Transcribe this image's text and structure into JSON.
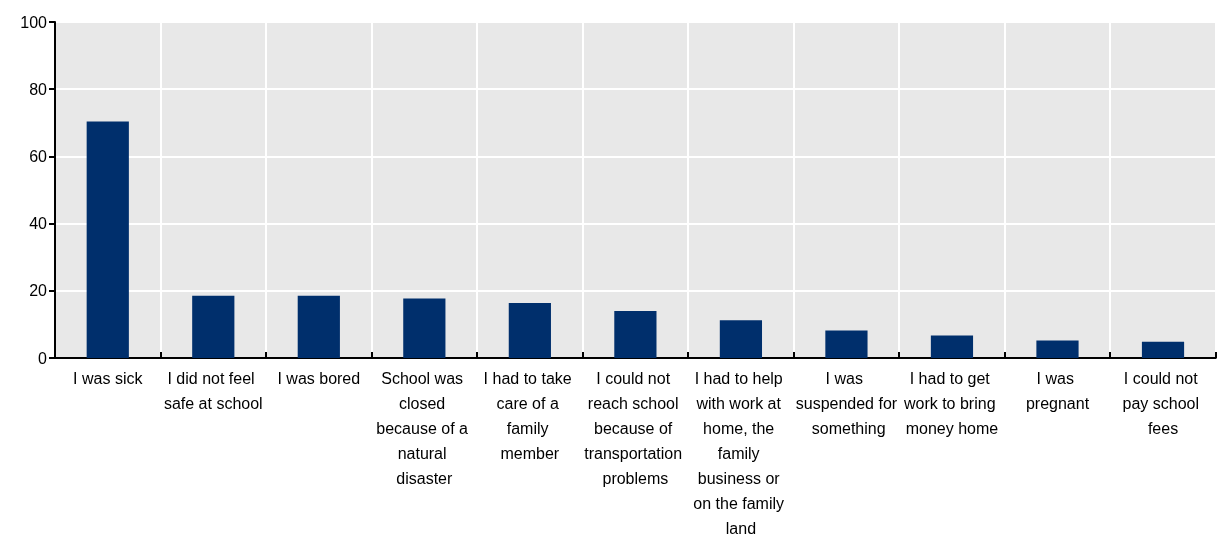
{
  "chart_data": {
    "type": "bar",
    "categories": [
      "I was sick",
      "I did not feel safe at school",
      "I was bored",
      "School was closed because of a natural disaster",
      "I had to take care of a family member",
      "I could not reach school because of transportation problems",
      "I had to help with work at home, the family business or on the family land",
      "I was suspended for something",
      "I had to get work to bring money home",
      "I was pregnant",
      "I could not pay school fees"
    ],
    "values": [
      70.4,
      18.5,
      18.5,
      17.7,
      16.4,
      14.0,
      11.2,
      8.2,
      6.7,
      5.2,
      4.8
    ],
    "color": "#002f6c",
    "ylim": [
      0,
      100
    ],
    "yticks": [
      0,
      20,
      40,
      60,
      80,
      100
    ],
    "grid": true
  }
}
